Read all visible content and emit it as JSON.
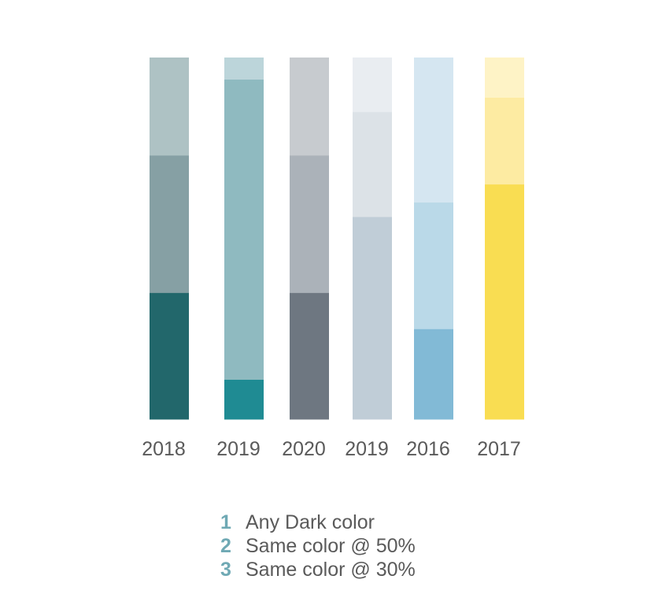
{
  "chart_data": {
    "type": "bar",
    "stacked": true,
    "normalized": true,
    "categories": [
      "2018",
      "2019",
      "2020",
      "2019",
      "2016",
      "2017"
    ],
    "segments_bottom_to_top": [
      {
        "values": [
          0.35,
          0.11,
          0.35,
          0.56,
          0.25,
          0.65
        ],
        "colors": [
          "#22676b",
          "#1f8b93",
          "#6e7781",
          "#c0cdd7",
          "#82bad6",
          "#f9dd52"
        ]
      },
      {
        "values": [
          0.38,
          0.83,
          0.38,
          0.29,
          0.35,
          0.24
        ],
        "colors": [
          "#86a0a4",
          "#8fbac0",
          "#abb2b9",
          "#dce2e7",
          "#bad9e8",
          "#fdeba2"
        ]
      },
      {
        "values": [
          0.27,
          0.06,
          0.27,
          0.15,
          0.4,
          0.11
        ],
        "colors": [
          "#aec2c4",
          "#bcd5da",
          "#c7cbcf",
          "#e9edf1",
          "#d5e6f1",
          "#fef3c6"
        ]
      }
    ],
    "ylim": [
      0,
      1
    ],
    "grid": false,
    "legend": "bottom-center"
  },
  "legend": {
    "items": [
      {
        "number": "1",
        "label": "Any Dark color"
      },
      {
        "number": "2",
        "label": "Same color @ 50%"
      },
      {
        "number": "3",
        "label": "Same color @ 30%"
      }
    ]
  }
}
